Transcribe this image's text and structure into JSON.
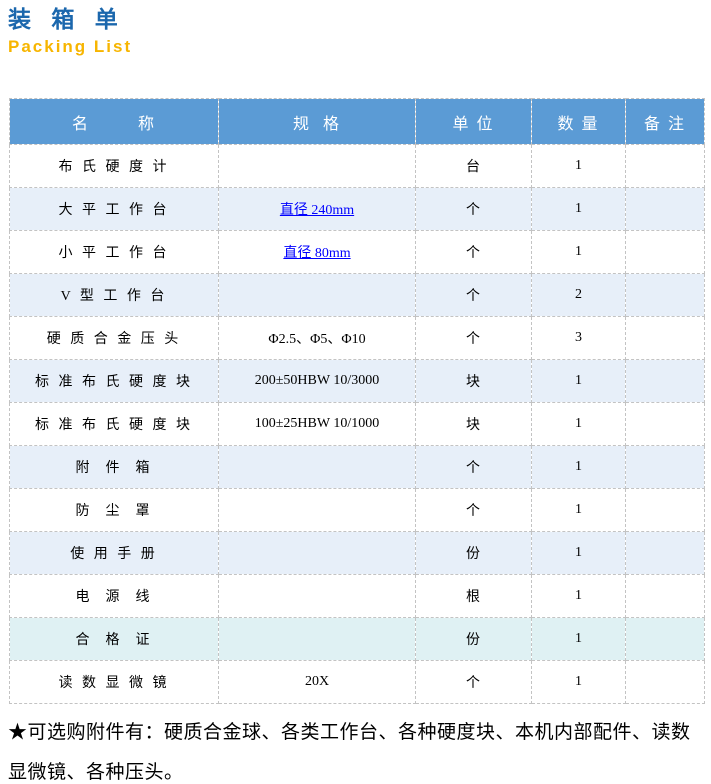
{
  "header": {
    "title_cn": "装 箱 单",
    "title_en": "Packing List"
  },
  "table": {
    "columns": [
      {
        "key": "name",
        "label": "名        称"
      },
      {
        "key": "spec",
        "label": "规  格"
      },
      {
        "key": "unit",
        "label": "单 位"
      },
      {
        "key": "qty",
        "label": "数 量"
      },
      {
        "key": "note",
        "label": "备 注"
      }
    ],
    "rows": [
      {
        "name": "布 氏 硬 度 计",
        "spec": "",
        "unit": "台",
        "qty": "1",
        "note": ""
      },
      {
        "name": "大 平 工 作 台",
        "spec": "直径 240mm",
        "unit": "个",
        "qty": "1",
        "note": "",
        "spec_is_link": true
      },
      {
        "name": "小 平 工 作 台",
        "spec": "直径 80mm",
        "unit": "个",
        "qty": "1",
        "note": "",
        "spec_is_link": true
      },
      {
        "name": "V 型 工 作 台",
        "spec": "",
        "unit": "个",
        "qty": "2",
        "note": ""
      },
      {
        "name": "硬 质 合 金 压 头",
        "spec": "Φ2.5、Φ5、Φ10",
        "unit": "个",
        "qty": "3",
        "note": ""
      },
      {
        "name": "标 准 布 氏 硬 度 块",
        "spec": "200±50HBW 10/3000",
        "unit": "块",
        "qty": "1",
        "note": ""
      },
      {
        "name": "标 准 布 氏 硬 度 块",
        "spec": "100±25HBW 10/1000",
        "unit": "块",
        "qty": "1",
        "note": ""
      },
      {
        "name": "附  件  箱",
        "spec": "",
        "unit": "个",
        "qty": "1",
        "note": ""
      },
      {
        "name": "防  尘  罩",
        "spec": "",
        "unit": "个",
        "qty": "1",
        "note": ""
      },
      {
        "name": "使 用 手 册",
        "spec": "",
        "unit": "份",
        "qty": "1",
        "note": ""
      },
      {
        "name": "电  源  线",
        "spec": "",
        "unit": "根",
        "qty": "1",
        "note": ""
      },
      {
        "name": "合  格  证",
        "spec": "",
        "unit": "份",
        "qty": "1",
        "note": ""
      },
      {
        "name": "读 数 显 微 镜",
        "spec": "20X",
        "unit": "个",
        "qty": "1",
        "note": ""
      }
    ]
  },
  "footer": {
    "note": "★可选购附件有：硬质合金球、各类工作台、各种硬度块、本机内部配件、读数显微镜、各种压头。"
  },
  "colors": {
    "title_blue": "#1B67AD",
    "subtitle_orange": "#F7B500",
    "header_bg": "#5B9BD5",
    "header_text": "#FFFFFF",
    "stripe_blue": "#E7EFF9",
    "stripe_cyan": "#DFF1F3",
    "link_blue": "#0000FF",
    "border_gray": "#C3C3C3"
  }
}
